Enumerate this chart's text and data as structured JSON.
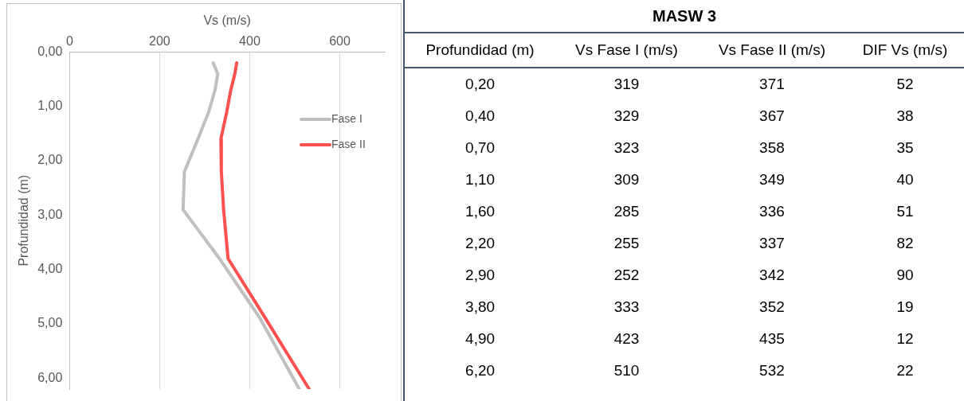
{
  "chart_data": [
    {
      "type": "line",
      "xlabel": "Vs (m/s)",
      "ylabel": "Profundidad (m)",
      "xlim": [
        0,
        700
      ],
      "xticks": [
        0,
        200,
        400,
        600
      ],
      "ylim": [
        6.2,
        0
      ],
      "yticks": [
        {
          "value": 0,
          "label": "0,00"
        },
        {
          "value": 1,
          "label": "1,00"
        },
        {
          "value": 2,
          "label": "2,00"
        },
        {
          "value": 3,
          "label": "3,00"
        },
        {
          "value": 4,
          "label": "4,00"
        },
        {
          "value": 5,
          "label": "5,00"
        },
        {
          "value": 6,
          "label": "6,00"
        }
      ],
      "grid": "x",
      "legend": "right",
      "marker": "none",
      "line_style": "solid",
      "series": [
        {
          "name": "Fase I",
          "color": "#bfbfbf",
          "x": [
            319,
            329,
            323,
            309,
            285,
            255,
            252,
            333,
            423,
            510
          ],
          "values": [
            0.2,
            0.4,
            0.7,
            1.1,
            1.6,
            2.2,
            2.9,
            3.8,
            4.9,
            6.2
          ]
        },
        {
          "name": "Fase II",
          "color": "#ff5050",
          "x": [
            371,
            367,
            358,
            349,
            336,
            337,
            342,
            352,
            435,
            532
          ],
          "values": [
            0.2,
            0.4,
            0.7,
            1.1,
            1.6,
            2.2,
            2.9,
            3.8,
            4.9,
            6.2
          ]
        }
      ]
    },
    {
      "type": "other",
      "title": "MASW 3",
      "categories": [
        "Profundidad (m)",
        "Vs Fase I (m/s)",
        "Vs Fase II (m/s)",
        "DIF Vs (m/s)"
      ],
      "cell_labels": [
        [
          "0,20",
          "319",
          "371",
          "52"
        ],
        [
          "0,40",
          "329",
          "367",
          "38"
        ],
        [
          "0,70",
          "323",
          "358",
          "35"
        ],
        [
          "1,10",
          "309",
          "349",
          "40"
        ],
        [
          "1,60",
          "285",
          "336",
          "51"
        ],
        [
          "2,20",
          "255",
          "337",
          "82"
        ],
        [
          "2,90",
          "252",
          "342",
          "90"
        ],
        [
          "3,80",
          "333",
          "352",
          "19"
        ],
        [
          "4,90",
          "423",
          "435",
          "12"
        ],
        [
          "6,20",
          "510",
          "532",
          "22"
        ]
      ]
    }
  ]
}
